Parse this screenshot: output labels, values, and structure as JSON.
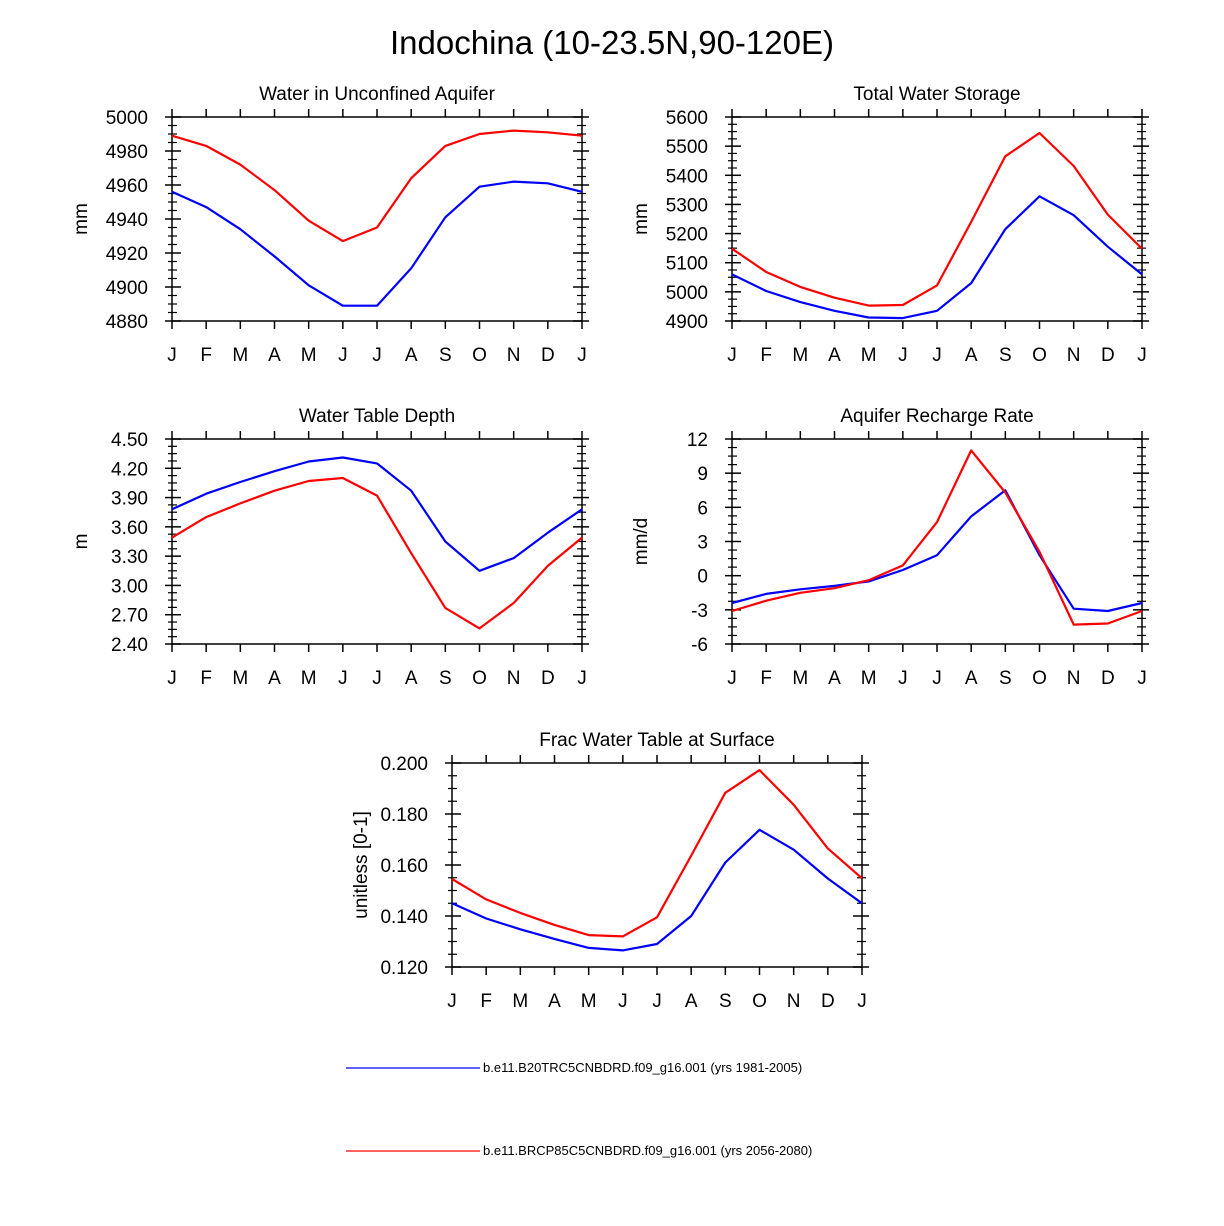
{
  "figure": {
    "title": "Indochina (10-23.5N,90-120E)"
  },
  "colors": {
    "series1": "#0000ff",
    "series2": "#ff0000",
    "axis": "#000000"
  },
  "legend": {
    "entries": [
      {
        "label": "b.e11.B20TRC5CNBDRD.f09_g16.001 (yrs 1981-2005)",
        "color": "#0000ff"
      },
      {
        "label": "b.e11.BRCP85C5CNBDRD.f09_g16.001 (yrs 2056-2080)",
        "color": "#ff0000"
      }
    ]
  },
  "chart_data": [
    {
      "type": "line",
      "title": "Water in Unconfined Aquifer",
      "ylabel": "mm",
      "xlabel": "",
      "categories": [
        "J",
        "F",
        "M",
        "A",
        "M",
        "J",
        "J",
        "A",
        "S",
        "O",
        "N",
        "D",
        "J"
      ],
      "ylim": [
        4880,
        5000
      ],
      "yticks": [
        4880,
        4900,
        4920,
        4940,
        4960,
        4980,
        5000
      ],
      "ytick_labels": [
        "4880",
        "4900",
        "4920",
        "4940",
        "4960",
        "4980",
        "5000"
      ],
      "series": [
        {
          "name": "b.e11.B20TRC5CNBDRD.f09_g16.001 (yrs 1981-2005)",
          "values": [
            4956,
            4947,
            4934,
            4918,
            4901,
            4889,
            4889,
            4911,
            4941,
            4959,
            4962,
            4961,
            4956
          ]
        },
        {
          "name": "b.e11.BRCP85C5CNBDRD.f09_g16.001 (yrs 2056-2080)",
          "values": [
            4989,
            4983,
            4972,
            4957,
            4939,
            4927,
            4935,
            4964,
            4983,
            4990,
            4992,
            4991,
            4989
          ]
        }
      ]
    },
    {
      "type": "line",
      "title": "Total Water Storage",
      "ylabel": "mm",
      "xlabel": "",
      "categories": [
        "J",
        "F",
        "M",
        "A",
        "M",
        "J",
        "J",
        "A",
        "S",
        "O",
        "N",
        "D",
        "J"
      ],
      "ylim": [
        4900,
        5600
      ],
      "yticks": [
        4900,
        5000,
        5100,
        5200,
        5300,
        5400,
        5500,
        5600
      ],
      "ytick_labels": [
        "4900",
        "5000",
        "5100",
        "5200",
        "5300",
        "5400",
        "5500",
        "5600"
      ],
      "series": [
        {
          "name": "b.e11.B20TRC5CNBDRD.f09_g16.001 (yrs 1981-2005)",
          "values": [
            5060,
            5003,
            4965,
            4935,
            4912,
            4910,
            4935,
            5030,
            5215,
            5328,
            5263,
            5155,
            5060
          ]
        },
        {
          "name": "b.e11.BRCP85C5CNBDRD.f09_g16.001 (yrs 2056-2080)",
          "values": [
            5148,
            5068,
            5017,
            4980,
            4953,
            4955,
            5022,
            5240,
            5465,
            5545,
            5432,
            5265,
            5148
          ]
        }
      ]
    },
    {
      "type": "line",
      "title": "Water Table Depth",
      "ylabel": "m",
      "xlabel": "",
      "categories": [
        "J",
        "F",
        "M",
        "A",
        "M",
        "J",
        "J",
        "A",
        "S",
        "O",
        "N",
        "D",
        "J"
      ],
      "ylim": [
        2.4,
        4.5
      ],
      "yticks": [
        2.4,
        2.7,
        3.0,
        3.3,
        3.6,
        3.9,
        4.2,
        4.5
      ],
      "ytick_labels": [
        "2.40",
        "2.70",
        "3.00",
        "3.30",
        "3.60",
        "3.90",
        "4.20",
        "4.50"
      ],
      "series": [
        {
          "name": "b.e11.B20TRC5CNBDRD.f09_g16.001 (yrs 1981-2005)",
          "values": [
            3.78,
            3.94,
            4.06,
            4.17,
            4.27,
            4.31,
            4.25,
            3.97,
            3.45,
            3.15,
            3.28,
            3.54,
            3.78
          ]
        },
        {
          "name": "b.e11.BRCP85C5CNBDRD.f09_g16.001 (yrs 2056-2080)",
          "values": [
            3.49,
            3.7,
            3.84,
            3.97,
            4.07,
            4.1,
            3.92,
            3.33,
            2.77,
            2.56,
            2.82,
            3.2,
            3.49
          ]
        }
      ]
    },
    {
      "type": "line",
      "title": "Aquifer Recharge Rate",
      "ylabel": "mm/d",
      "xlabel": "",
      "categories": [
        "J",
        "F",
        "M",
        "A",
        "M",
        "J",
        "J",
        "A",
        "S",
        "O",
        "N",
        "D",
        "J"
      ],
      "ylim": [
        -6,
        12
      ],
      "yticks": [
        -6,
        -3,
        0,
        3,
        6,
        9,
        12
      ],
      "ytick_labels": [
        "-6",
        "-3",
        "0",
        "3",
        "6",
        "9",
        "12"
      ],
      "series": [
        {
          "name": "b.e11.B20TRC5CNBDRD.f09_g16.001 (yrs 1981-2005)",
          "values": [
            -2.4,
            -1.6,
            -1.2,
            -0.9,
            -0.5,
            0.5,
            1.8,
            5.2,
            7.5,
            1.8,
            -2.9,
            -3.1,
            -2.4
          ]
        },
        {
          "name": "b.e11.BRCP85C5CNBDRD.f09_g16.001 (yrs 2056-2080)",
          "values": [
            -3.1,
            -2.2,
            -1.5,
            -1.1,
            -0.4,
            0.9,
            4.7,
            11.0,
            7.3,
            2.1,
            -4.3,
            -4.2,
            -3.1
          ]
        }
      ]
    },
    {
      "type": "line",
      "title": "Frac Water Table at Surface",
      "ylabel": "unitless [0-1]",
      "xlabel": "",
      "categories": [
        "J",
        "F",
        "M",
        "A",
        "M",
        "J",
        "J",
        "A",
        "S",
        "O",
        "N",
        "D",
        "J"
      ],
      "ylim": [
        0.12,
        0.2
      ],
      "yticks": [
        0.12,
        0.14,
        0.16,
        0.18,
        0.2
      ],
      "ytick_labels": [
        "0.120",
        "0.140",
        "0.160",
        "0.180",
        "0.200"
      ],
      "series": [
        {
          "name": "b.e11.B20TRC5CNBDRD.f09_g16.001 (yrs 1981-2005)",
          "values": [
            0.145,
            0.139,
            0.1348,
            0.131,
            0.1275,
            0.1265,
            0.129,
            0.14,
            0.161,
            0.1738,
            0.166,
            0.1547,
            0.145
          ]
        },
        {
          "name": "b.e11.BRCP85C5CNBDRD.f09_g16.001 (yrs 2056-2080)",
          "values": [
            0.1545,
            0.1465,
            0.1412,
            0.1365,
            0.1325,
            0.132,
            0.1395,
            0.1637,
            0.1883,
            0.1972,
            0.1836,
            0.1665,
            0.1548
          ]
        }
      ]
    }
  ]
}
